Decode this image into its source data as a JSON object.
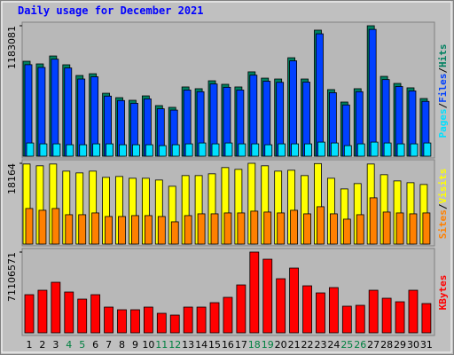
{
  "chart_data": [
    {
      "type": "bar",
      "title": "Daily usage for December 2021",
      "ylim": [
        0,
        1183081
      ],
      "yticks": [
        1183081
      ],
      "legend_separator": "/",
      "series": [
        {
          "name": "Hits",
          "color": "#008060",
          "values": [
            861000,
            837000,
            909000,
            829000,
            732000,
            748000,
            571000,
            531000,
            507000,
            547000,
            459000,
            443000,
            628000,
            612000,
            684000,
            652000,
            628000,
            765000,
            708000,
            700000,
            893000,
            700000,
            1143000,
            604000,
            491000,
            612000,
            1183081,
            724000,
            660000,
            620000,
            523000
          ]
        },
        {
          "name": "Files",
          "color": "#0040ff",
          "values": [
            830000,
            805000,
            880000,
            800000,
            700000,
            720000,
            545000,
            505000,
            480000,
            520000,
            430000,
            418000,
            600000,
            585000,
            655000,
            625000,
            600000,
            735000,
            680000,
            670000,
            865000,
            672000,
            1110000,
            576000,
            465000,
            585000,
            1150000,
            695000,
            632000,
            592000,
            497000
          ]
        },
        {
          "name": "Pages",
          "color": "#00e0ff",
          "values": [
            120000,
            112000,
            112000,
            104000,
            104000,
            112000,
            112000,
            104000,
            104000,
            104000,
            96000,
            104000,
            112000,
            120000,
            112000,
            120000,
            112000,
            112000,
            104000,
            112000,
            112000,
            112000,
            128000,
            120000,
            96000,
            112000,
            128000,
            120000,
            112000,
            112000,
            120000
          ]
        }
      ]
    },
    {
      "type": "bar",
      "ylim": [
        0,
        18164
      ],
      "yticks": [
        18164
      ],
      "legend_separator": "/",
      "series": [
        {
          "name": "Visits",
          "color": "#ffff00",
          "values": [
            18000,
            17600,
            18000,
            16400,
            16000,
            16400,
            15000,
            15200,
            14800,
            14800,
            14400,
            13000,
            15400,
            15400,
            15800,
            17200,
            16800,
            18164,
            17600,
            16400,
            16600,
            15400,
            18100,
            14800,
            12400,
            13600,
            18000,
            15600,
            14200,
            13800,
            13400
          ]
        },
        {
          "name": "Sites",
          "color": "#ff8000",
          "values": [
            8000,
            7600,
            8000,
            6600,
            6600,
            7000,
            6200,
            6200,
            6400,
            6400,
            6200,
            5000,
            6400,
            6800,
            6800,
            7000,
            7000,
            7400,
            7200,
            7000,
            7600,
            6800,
            8400,
            6800,
            5600,
            6600,
            10400,
            7200,
            7000,
            6800,
            7000
          ]
        }
      ]
    },
    {
      "type": "bar",
      "ylim": [
        0,
        71106571
      ],
      "yticks": [
        71106571
      ],
      "categories": [
        "1",
        "2",
        "3",
        "4",
        "5",
        "6",
        "7",
        "8",
        "9",
        "10",
        "11",
        "12",
        "13",
        "14",
        "15",
        "16",
        "17",
        "18",
        "19",
        "20",
        "21",
        "22",
        "23",
        "24",
        "25",
        "26",
        "27",
        "28",
        "29",
        "30",
        "31"
      ],
      "highlight_categories": [
        3,
        4,
        10,
        11,
        17,
        18,
        24,
        25
      ],
      "highlight_color": "#008040",
      "series": [
        {
          "name": "KBytes",
          "color": "#ff0000",
          "values": [
            33583000,
            37488000,
            44517000,
            35926000,
            29678000,
            33583000,
            22649000,
            20306000,
            20306000,
            22649000,
            17182000,
            15620000,
            22649000,
            22649000,
            26554000,
            31240000,
            42174000,
            71106571,
            64823000,
            47641000,
            57013000,
            41393000,
            35145000,
            39831000,
            23430000,
            24211000,
            37488000,
            30459000,
            27335000,
            37488000,
            25773000
          ]
        }
      ]
    }
  ]
}
